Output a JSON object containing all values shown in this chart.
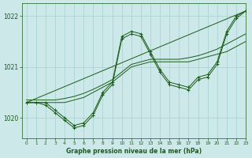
{
  "title": "Graphe pression niveau de la mer (hPa)",
  "bg_color": "#cce8e8",
  "grid_color": "#aad4d4",
  "line_color": "#1a5c1a",
  "xlim": [
    -0.5,
    23
  ],
  "ylim": [
    1019.6,
    1022.25
  ],
  "yticks": [
    1020,
    1021,
    1022
  ],
  "xticks": [
    0,
    1,
    2,
    3,
    4,
    5,
    6,
    7,
    8,
    9,
    10,
    11,
    12,
    13,
    14,
    15,
    16,
    17,
    18,
    19,
    20,
    21,
    22,
    23
  ],
  "series": [
    {
      "x": [
        0,
        23
      ],
      "y": [
        1020.3,
        1022.1
      ],
      "marker": false
    },
    {
      "x": [
        0,
        1,
        2,
        3,
        4,
        5,
        6,
        7,
        8,
        9,
        10,
        11,
        12,
        13,
        14,
        15,
        16,
        17,
        18,
        19,
        20,
        21,
        22,
        23
      ],
      "y": [
        1020.3,
        1020.3,
        1020.25,
        1020.1,
        1019.95,
        1019.8,
        1019.85,
        1020.05,
        1020.45,
        1020.65,
        1021.55,
        1021.65,
        1021.6,
        1021.25,
        1020.9,
        1020.65,
        1020.6,
        1020.55,
        1020.75,
        1020.8,
        1021.05,
        1021.65,
        1021.95,
        1022.1
      ],
      "marker": true
    },
    {
      "x": [
        0,
        1,
        2,
        3,
        4,
        5,
        6,
        7,
        8,
        9,
        10,
        11,
        12,
        13,
        14,
        15,
        16,
        17,
        18,
        19,
        20,
        21,
        22,
        23
      ],
      "y": [
        1020.3,
        1020.3,
        1020.3,
        1020.15,
        1020.0,
        1019.85,
        1019.9,
        1020.1,
        1020.5,
        1020.7,
        1021.6,
        1021.7,
        1021.65,
        1021.3,
        1020.95,
        1020.7,
        1020.65,
        1020.6,
        1020.8,
        1020.85,
        1021.1,
        1021.7,
        1022.0,
        1022.1
      ],
      "marker": true
    },
    {
      "x": [
        0,
        1,
        2,
        3,
        4,
        5,
        6,
        7,
        8,
        9,
        10,
        11,
        12,
        13,
        14,
        15,
        16,
        17,
        18,
        19,
        20,
        21,
        22,
        23
      ],
      "y": [
        1020.3,
        1020.3,
        1020.3,
        1020.3,
        1020.3,
        1020.35,
        1020.4,
        1020.5,
        1020.6,
        1020.7,
        1020.85,
        1021.0,
        1021.05,
        1021.1,
        1021.1,
        1021.1,
        1021.1,
        1021.1,
        1021.15,
        1021.2,
        1021.25,
        1021.3,
        1021.4,
        1021.5
      ],
      "marker": false
    },
    {
      "x": [
        0,
        1,
        2,
        3,
        4,
        5,
        6,
        7,
        8,
        9,
        10,
        11,
        12,
        13,
        14,
        15,
        16,
        17,
        18,
        19,
        20,
        21,
        22,
        23
      ],
      "y": [
        1020.35,
        1020.35,
        1020.35,
        1020.35,
        1020.38,
        1020.42,
        1020.48,
        1020.56,
        1020.65,
        1020.75,
        1020.9,
        1021.05,
        1021.1,
        1021.15,
        1021.15,
        1021.15,
        1021.15,
        1021.18,
        1021.22,
        1021.28,
        1021.35,
        1021.45,
        1021.55,
        1021.65
      ],
      "marker": false
    }
  ]
}
